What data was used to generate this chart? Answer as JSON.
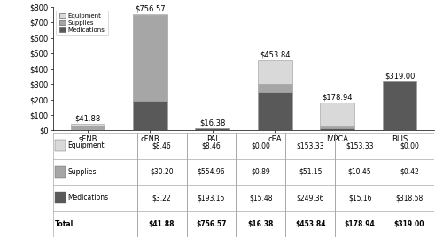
{
  "categories": [
    "sFNB",
    "cFNB",
    "PAI",
    "cEA",
    "IVPCA",
    "BLIS"
  ],
  "equipment": [
    8.46,
    8.46,
    0.0,
    153.33,
    153.33,
    0.0
  ],
  "supplies": [
    30.2,
    554.96,
    0.89,
    51.15,
    10.45,
    0.42
  ],
  "medications": [
    3.22,
    193.15,
    15.48,
    249.36,
    15.16,
    318.58
  ],
  "totals": [
    41.88,
    756.57,
    16.38,
    453.84,
    178.94,
    319.0
  ],
  "total_labels": [
    "$41.88",
    "$756.57",
    "$16.38",
    "$453.84",
    "$178.94",
    "$319.00"
  ],
  "color_equipment": "#d9d9d9",
  "color_supplies": "#a6a6a6",
  "color_medications": "#595959",
  "ylim": [
    0,
    800
  ],
  "yticks": [
    0,
    100,
    200,
    300,
    400,
    500,
    600,
    700,
    800
  ],
  "ytick_labels": [
    "$0",
    "$100",
    "$200",
    "$300",
    "$400",
    "$500",
    "$600",
    "$700",
    "$800"
  ],
  "legend_labels": [
    "Equipment",
    "Supplies",
    "Medications"
  ],
  "table_rows": [
    [
      "Equipment",
      "$8.46",
      "$8.46",
      "$0.00",
      "$153.33",
      "$153.33",
      "$0.00"
    ],
    [
      "Supplies",
      "$30.20",
      "$554.96",
      "$0.89",
      "$51.15",
      "$10.45",
      "$0.42"
    ],
    [
      "Medications",
      "$3.22",
      "$193.15",
      "$15.48",
      "$249.36",
      "$15.16",
      "$318.58"
    ],
    [
      "Total",
      "$41.88",
      "$756.57",
      "$16.38",
      "$453.84",
      "$178.94",
      "$319.00"
    ]
  ],
  "bar_width": 0.55,
  "edge_color": "#999999",
  "background_color": "#ffffff",
  "label_fontsize": 6.0,
  "table_fontsize": 5.5,
  "annotation_fontsize": 6.0
}
